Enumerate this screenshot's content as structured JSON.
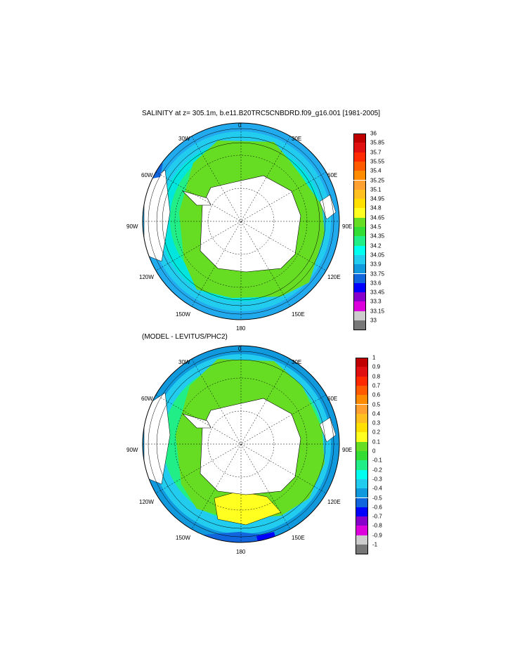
{
  "panels": [
    {
      "title": "SALINITY at z= 305.1m, b.e11.B20TRC5CNBDRD.f09_g16.001 [1981-2005]",
      "longitude_labels": {
        "n": "0",
        "s": "180",
        "e90": "90E",
        "w90": "90W",
        "e30": "30E",
        "w30": "30W",
        "e60": "60E",
        "w60": "60W",
        "e120": "120E",
        "w120": "120W",
        "e150": "150E",
        "w150": "150W"
      },
      "colorbar": {
        "labels": [
          "36",
          "35.85",
          "35.7",
          "35.55",
          "35.4",
          "35.25",
          "35.1",
          "34.95",
          "34.8",
          "34.65",
          "34.5",
          "34.35",
          "34.2",
          "34.05",
          "33.9",
          "33.75",
          "33.6",
          "33.45",
          "33.3",
          "33.15",
          "33"
        ],
        "colors": [
          "#c00000",
          "#e01010",
          "#ff2a00",
          "#ff5a00",
          "#ff8c00",
          "#ffa030",
          "#ffc020",
          "#ffe000",
          "#ffff20",
          "#66dd22",
          "#33dd33",
          "#22ee88",
          "#00ffee",
          "#22ccee",
          "#1199dd",
          "#1166dd",
          "#0000ff",
          "#8800cc",
          "#dd00dd",
          "#cccccc",
          "#777777"
        ]
      }
    },
    {
      "title": "(MODEL - LEVITUS/PHC2)",
      "longitude_labels": {
        "n": "0",
        "s": "180",
        "e90": "90E",
        "w90": "90W",
        "e30": "30E",
        "w30": "30W",
        "e60": "60E",
        "w60": "60W",
        "e120": "120E",
        "w120": "120W",
        "e150": "150E",
        "w150": "150W"
      },
      "colorbar": {
        "labels": [
          "1",
          "0.9",
          "0.8",
          "0.7",
          "0.6",
          "0.5",
          "0.4",
          "0.3",
          "0.2",
          "0.1",
          "0",
          "-0.1",
          "-0.2",
          "-0.3",
          "-0.4",
          "-0.5",
          "-0.6",
          "-0.7",
          "-0.8",
          "-0.9",
          "-1"
        ],
        "colors": [
          "#c00000",
          "#e01010",
          "#ff2a00",
          "#ff5a00",
          "#ff8c00",
          "#ffa030",
          "#ffc020",
          "#ffe000",
          "#ffff20",
          "#66dd22",
          "#33dd33",
          "#22ee88",
          "#00ffee",
          "#22ccee",
          "#1199dd",
          "#1166dd",
          "#0000ff",
          "#8800cc",
          "#dd00dd",
          "#cccccc",
          "#777777"
        ]
      }
    }
  ]
}
